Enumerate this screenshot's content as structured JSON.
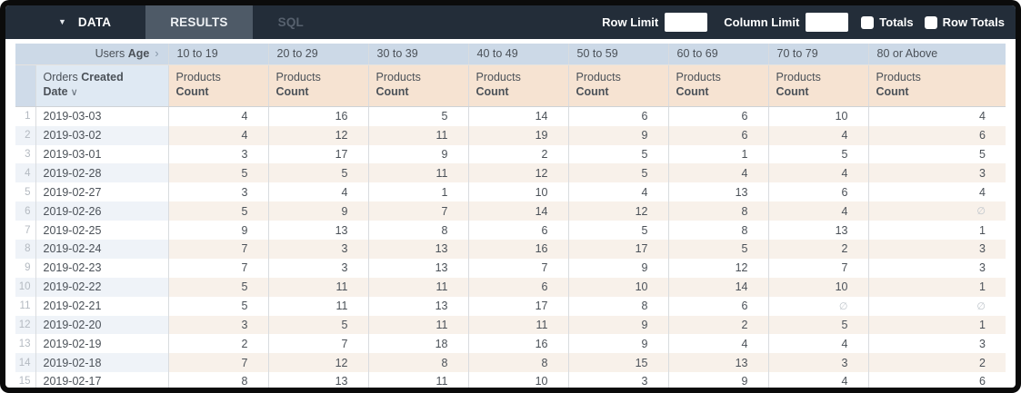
{
  "topbar": {
    "data_tab": "DATA",
    "results_tab": "RESULTS",
    "sql_tab": "SQL",
    "row_limit_label": "Row Limit",
    "row_limit_value": "",
    "column_limit_label": "Column Limit",
    "column_limit_value": "",
    "totals_label": "Totals",
    "totals_checked": false,
    "row_totals_label": "Row Totals",
    "row_totals_checked": false
  },
  "colors": {
    "topbar_bg": "#232d39",
    "active_tab_bg": "#4e5a67",
    "pivot_header_bg": "#ccd9e7",
    "dimension_header_bg": "#dfe9f3",
    "measure_header_bg": "#f6e3d2",
    "even_row_dimension_bg": "#eff3f8",
    "even_row_measure_bg": "#f8f1ea",
    "text": "#4b5158"
  },
  "table": {
    "pivot": {
      "view": "Users",
      "field": "Age",
      "chevron": "›"
    },
    "age_buckets": [
      "10 to 19",
      "20 to 29",
      "30 to 39",
      "40 to 49",
      "50 to 59",
      "60 to 69",
      "70 to 79",
      "80 or Above"
    ],
    "row_dimension": {
      "view": "Orders",
      "field_word1": "Created",
      "field_word2": "Date",
      "sort_caret": "∨"
    },
    "measure": {
      "view": "Products",
      "field": "Count"
    },
    "null_display": "∅",
    "rows": [
      {
        "index": 1,
        "date": "2019-03-03",
        "values": [
          4,
          16,
          5,
          14,
          6,
          6,
          10,
          4
        ]
      },
      {
        "index": 2,
        "date": "2019-03-02",
        "values": [
          4,
          12,
          11,
          19,
          9,
          6,
          4,
          6
        ]
      },
      {
        "index": 3,
        "date": "2019-03-01",
        "values": [
          3,
          17,
          9,
          2,
          5,
          1,
          5,
          5
        ]
      },
      {
        "index": 4,
        "date": "2019-02-28",
        "values": [
          5,
          5,
          11,
          12,
          5,
          4,
          4,
          3
        ]
      },
      {
        "index": 5,
        "date": "2019-02-27",
        "values": [
          3,
          4,
          1,
          10,
          4,
          13,
          6,
          4
        ]
      },
      {
        "index": 6,
        "date": "2019-02-26",
        "values": [
          5,
          9,
          7,
          14,
          12,
          8,
          4,
          null
        ]
      },
      {
        "index": 7,
        "date": "2019-02-25",
        "values": [
          9,
          13,
          8,
          6,
          5,
          8,
          13,
          1
        ]
      },
      {
        "index": 8,
        "date": "2019-02-24",
        "values": [
          7,
          3,
          13,
          16,
          17,
          5,
          2,
          3
        ]
      },
      {
        "index": 9,
        "date": "2019-02-23",
        "values": [
          7,
          3,
          13,
          7,
          9,
          12,
          7,
          3
        ]
      },
      {
        "index": 10,
        "date": "2019-02-22",
        "values": [
          5,
          11,
          11,
          6,
          10,
          14,
          10,
          1
        ]
      },
      {
        "index": 11,
        "date": "2019-02-21",
        "values": [
          5,
          11,
          13,
          17,
          8,
          6,
          null,
          null
        ]
      },
      {
        "index": 12,
        "date": "2019-02-20",
        "values": [
          3,
          5,
          11,
          11,
          9,
          2,
          5,
          1
        ]
      },
      {
        "index": 13,
        "date": "2019-02-19",
        "values": [
          2,
          7,
          18,
          16,
          9,
          4,
          4,
          3
        ]
      },
      {
        "index": 14,
        "date": "2019-02-18",
        "values": [
          7,
          12,
          8,
          8,
          15,
          13,
          3,
          2
        ]
      },
      {
        "index": 15,
        "date": "2019-02-17",
        "values": [
          8,
          13,
          11,
          10,
          3,
          9,
          4,
          6
        ]
      }
    ]
  }
}
